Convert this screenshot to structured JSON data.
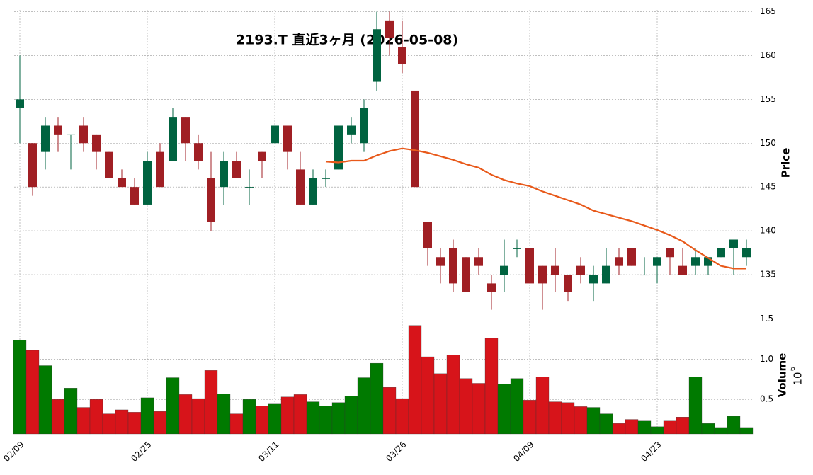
{
  "chart_data": {
    "type": "candlestick",
    "title": "2193.T 直近3ヶ月 (2026-05-08)",
    "categories": [
      "02/09",
      null,
      null,
      null,
      null,
      null,
      null,
      null,
      null,
      null,
      "02/25",
      null,
      null,
      null,
      null,
      null,
      null,
      null,
      null,
      null,
      "03/11",
      null,
      null,
      null,
      null,
      null,
      null,
      null,
      null,
      null,
      "03/26",
      null,
      null,
      null,
      null,
      null,
      null,
      null,
      null,
      null,
      "04/09",
      null,
      null,
      null,
      null,
      null,
      null,
      null,
      null,
      null,
      "04/23",
      null,
      null,
      null,
      null,
      null,
      null,
      null
    ],
    "open": [
      154,
      150,
      149,
      152,
      151,
      152,
      151,
      149,
      146,
      145,
      143,
      149,
      148,
      153,
      150,
      146,
      145,
      148,
      145,
      149,
      150,
      152,
      147,
      143,
      146,
      147,
      151,
      150,
      157,
      164,
      161,
      156,
      141,
      137,
      138,
      137,
      137,
      134,
      135,
      138,
      138,
      136,
      136,
      135,
      136,
      134,
      134,
      137,
      138,
      135,
      136,
      138,
      136,
      136,
      136,
      137,
      138,
      137
    ],
    "high": [
      160,
      150,
      153,
      153,
      151,
      153,
      151,
      149,
      147,
      146,
      149,
      150,
      154,
      153,
      151,
      149,
      149,
      149,
      147,
      149,
      152,
      152,
      149,
      147,
      147,
      152,
      153,
      155,
      165,
      165,
      164,
      156,
      141,
      138,
      139,
      137,
      138,
      135,
      139,
      139,
      138,
      136,
      138,
      135,
      137,
      136,
      138,
      138,
      138,
      137,
      137,
      138,
      138,
      138,
      137,
      138,
      139,
      139
    ],
    "low": [
      150,
      144,
      147,
      149,
      147,
      149,
      147,
      146,
      145,
      143,
      143,
      145,
      148,
      148,
      147,
      140,
      143,
      146,
      143,
      146,
      150,
      147,
      143,
      143,
      145,
      147,
      150,
      149,
      156,
      160,
      158,
      145,
      136,
      134,
      133,
      133,
      135,
      131,
      133,
      137,
      134,
      131,
      133,
      132,
      134,
      132,
      134,
      135,
      136,
      135,
      134,
      135,
      135,
      135,
      135,
      137,
      135,
      136
    ],
    "close": [
      155,
      145,
      152,
      151,
      151,
      150,
      149,
      146,
      145,
      143,
      148,
      145,
      153,
      150,
      148,
      141,
      148,
      146,
      145,
      148,
      152,
      149,
      143,
      146,
      146,
      152,
      152,
      154,
      163,
      162,
      159,
      145,
      138,
      136,
      134,
      133,
      136,
      133,
      136,
      138,
      134,
      134,
      135,
      133,
      135,
      135,
      136,
      136,
      136,
      135,
      137,
      137,
      135,
      137,
      137,
      138,
      139,
      138
    ],
    "up_color": "#006340",
    "down_color": "#a01f24",
    "ylim": [
      130.4,
      165.2
    ],
    "yticks": [
      135,
      140,
      145,
      150,
      155,
      160,
      165
    ],
    "ylabel": "Price",
    "grid": true,
    "moving_average": {
      "color": "#e8591a",
      "values": [
        null,
        null,
        null,
        null,
        null,
        null,
        null,
        null,
        null,
        null,
        null,
        null,
        null,
        null,
        null,
        null,
        null,
        null,
        null,
        null,
        null,
        null,
        null,
        null,
        147.9,
        147.8,
        148.0,
        148.0,
        148.6,
        149.1,
        149.4,
        149.2,
        148.9,
        148.5,
        148.1,
        147.6,
        147.2,
        146.4,
        145.8,
        145.4,
        145.1,
        144.5,
        144.0,
        143.5,
        143.0,
        142.3,
        141.9,
        141.5,
        141.1,
        140.6,
        140.1,
        139.5,
        138.8,
        137.8,
        136.9,
        136.0,
        135.7,
        135.7
      ]
    },
    "volume": {
      "values": [
        1.24,
        1.11,
        0.92,
        0.5,
        0.64,
        0.4,
        0.5,
        0.32,
        0.37,
        0.34,
        0.52,
        0.35,
        0.77,
        0.56,
        0.51,
        0.86,
        0.57,
        0.32,
        0.5,
        0.42,
        0.45,
        0.53,
        0.56,
        0.47,
        0.42,
        0.46,
        0.54,
        0.77,
        0.95,
        0.65,
        0.51,
        1.42,
        1.03,
        0.82,
        1.05,
        0.76,
        0.7,
        1.26,
        0.69,
        0.76,
        0.49,
        0.78,
        0.47,
        0.46,
        0.41,
        0.4,
        0.32,
        0.2,
        0.25,
        0.23,
        0.16,
        0.23,
        0.28,
        0.78,
        0.2,
        0.15,
        0.29,
        0.15
      ],
      "up_color": "#007a00",
      "down_color": "#d7141a",
      "ylim": [
        0.07,
        1.55
      ],
      "yticks": [
        0.5,
        {
          "value": 1,
          "label": "1.0"
        },
        1.5
      ],
      "ylabel": "Volume",
      "scale": {
        "base": "10",
        "exponent": "6"
      }
    }
  }
}
